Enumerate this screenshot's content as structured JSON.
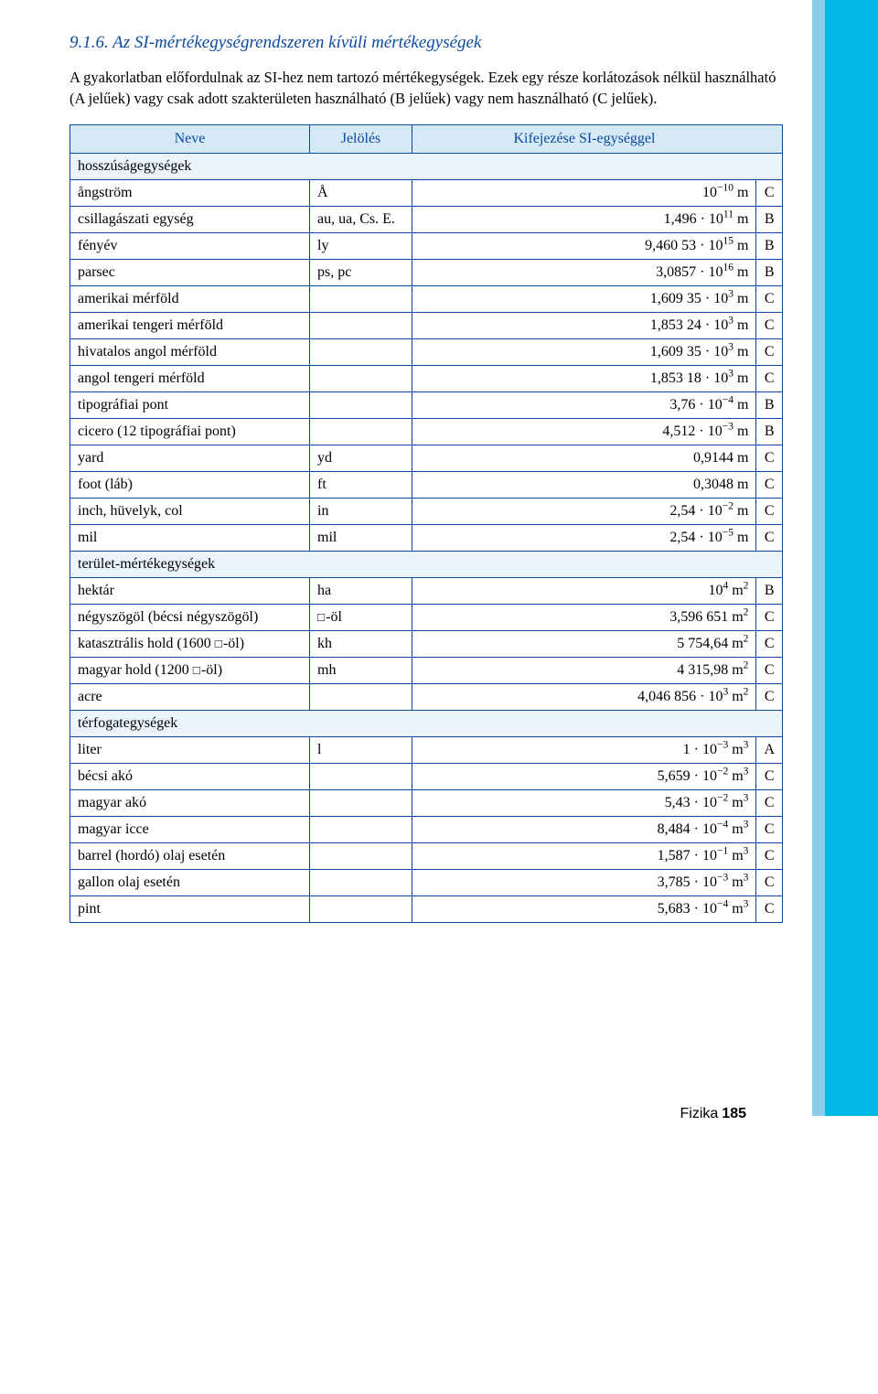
{
  "section_number": "9.1.6.",
  "section_title": "Az SI-mértékegységrendszeren kívüli mértékegységek",
  "intro": "A gyakorlatban előfordulnak az SI-hez nem tartozó mértékegységek. Ezek egy része korlátozások nélkül használható (A jelűek) vagy csak adott szakterületen használható (B jelűek) vagy nem használható (C jelűek).",
  "headers": {
    "name": "Neve",
    "symbol": "Jelölés",
    "expr": "Kifejezése SI-egységgel"
  },
  "groups": [
    {
      "label": "hosszúságegységek",
      "rows": [
        {
          "name": "ångström",
          "symbol": "Å",
          "expr": "10<sup>−10</sup> m",
          "cat": "C"
        },
        {
          "name": "csillagászati egység",
          "symbol": "au, ua, Cs. E.",
          "expr": "1,496 · 10<sup>11</sup> m",
          "cat": "B"
        },
        {
          "name": "fényév",
          "symbol": "ly",
          "expr": "9,460 53 · 10<sup>15</sup> m",
          "cat": "B"
        },
        {
          "name": "parsec",
          "symbol": "ps, pc",
          "expr": "3,0857 · 10<sup>16</sup> m",
          "cat": "B"
        },
        {
          "name": "amerikai mérföld",
          "symbol": "",
          "expr": "1,609 35 · 10<sup>3</sup> m",
          "cat": "C"
        },
        {
          "name": "amerikai tengeri mérföld",
          "symbol": "",
          "expr": "1,853 24 · 10<sup>3</sup> m",
          "cat": "C"
        },
        {
          "name": "hivatalos angol mérföld",
          "symbol": "",
          "expr": "1,609 35 · 10<sup>3</sup> m",
          "cat": "C"
        },
        {
          "name": "angol tengeri mérföld",
          "symbol": "",
          "expr": "1,853 18 · 10<sup>3</sup> m",
          "cat": "C"
        },
        {
          "name": "tipográfiai pont",
          "symbol": "",
          "expr": "3,76 · 10<sup>−4</sup> m",
          "cat": "B"
        },
        {
          "name": "cicero (12 tipográfiai pont)",
          "symbol": "",
          "expr": "4,512 · 10<sup>−3</sup> m",
          "cat": "B"
        },
        {
          "name": "yard",
          "symbol": "yd",
          "expr": "0,9144 m",
          "cat": "C"
        },
        {
          "name": "foot (láb)",
          "symbol": "ft",
          "expr": "0,3048 m",
          "cat": "C"
        },
        {
          "name": "inch, hüvelyk, col",
          "symbol": "in",
          "expr": "2,54 · 10<sup>−2</sup> m",
          "cat": "C"
        },
        {
          "name": "mil",
          "symbol": "mil",
          "expr": "2,54 · 10<sup>−5</sup> m",
          "cat": "C"
        }
      ]
    },
    {
      "label": "terület-mértékegységek",
      "rows": [
        {
          "name": "hektár",
          "symbol": "ha",
          "expr": "10<sup>4</sup> m<sup>2</sup>",
          "cat": "B"
        },
        {
          "name": "négyszögöl (bécsi négyszögöl)",
          "symbol": "<span class=\"sq\"></span>-öl",
          "expr": "3,596 651 m<sup>2</sup>",
          "cat": "C"
        },
        {
          "name": "katasztrális hold (1600 <span class=\"sq\"></span>-öl)",
          "symbol": "kh",
          "expr": "5 754,64 m<sup>2</sup>",
          "cat": "C"
        },
        {
          "name": "magyar hold (1200 <span class=\"sq\"></span>-öl)",
          "symbol": "mh",
          "expr": "4 315,98 m<sup>2</sup>",
          "cat": "C"
        },
        {
          "name": "acre",
          "symbol": "",
          "expr": "4,046 856 · 10<sup>3</sup> m<sup>2</sup>",
          "cat": "C"
        }
      ]
    },
    {
      "label": "térfogategységek",
      "rows": [
        {
          "name": "liter",
          "symbol": "l",
          "expr": "1 · 10<sup>−3</sup> m<sup>3</sup>",
          "cat": "A"
        },
        {
          "name": "bécsi akó",
          "symbol": "",
          "expr": "5,659 · 10<sup>−2</sup> m<sup>3</sup>",
          "cat": "C"
        },
        {
          "name": "magyar akó",
          "symbol": "",
          "expr": "5,43 · 10<sup>−2</sup> m<sup>3</sup>",
          "cat": "C"
        },
        {
          "name": "magyar icce",
          "symbol": "",
          "expr": "8,484 · 10<sup>−4</sup> m<sup>3</sup>",
          "cat": "C"
        },
        {
          "name": "barrel (hordó) olaj esetén",
          "symbol": "",
          "expr": "1,587 · 10<sup>−1</sup> m<sup>3</sup>",
          "cat": "C"
        },
        {
          "name": "gallon olaj esetén",
          "symbol": "",
          "expr": "3,785 · 10<sup>−3</sup> m<sup>3</sup>",
          "cat": "C"
        },
        {
          "name": "pint",
          "symbol": "",
          "expr": "5,683 · 10<sup>−4</sup> m<sup>3</sup>",
          "cat": "C"
        }
      ]
    }
  ],
  "footer": {
    "label": "Fizika",
    "page": "185"
  },
  "colors": {
    "heading": "#0b4aa0",
    "header_bg": "#d6e9f7",
    "section_bg": "#ebf4fb",
    "border": "#0b4aa0",
    "sidebar_main": "#00b8e6",
    "sidebar_edge": "#8accea"
  }
}
